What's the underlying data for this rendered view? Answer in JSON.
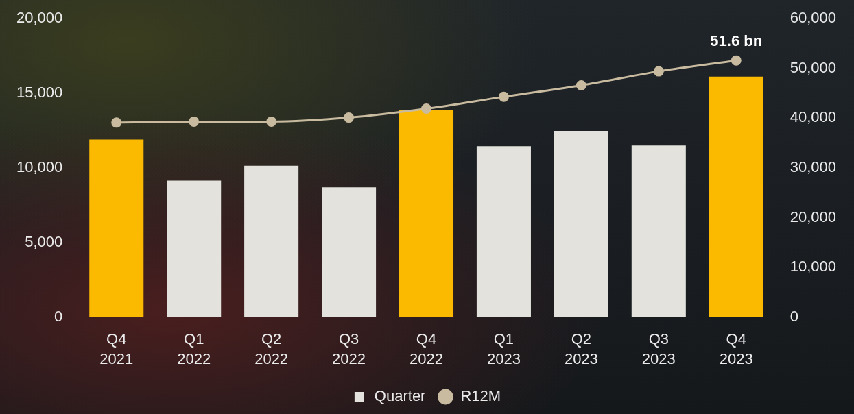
{
  "chart_data": {
    "type": "bar",
    "categories": [
      "Q4 2021",
      "Q1 2022",
      "Q2 2022",
      "Q3 2022",
      "Q4 2022",
      "Q1 2023",
      "Q2 2023",
      "Q3 2023",
      "Q4 2023"
    ],
    "series": [
      {
        "name": "Quarter",
        "type": "bar",
        "color": "#E3E2DC",
        "colors": [
          "#FBBA00",
          "#E3E2DC",
          "#E3E2DC",
          "#E3E2DC",
          "#FBBA00",
          "#E3E2DC",
          "#E3E2DC",
          "#E3E2DC",
          "#FBBA00"
        ],
        "values": [
          11900,
          9150,
          10150,
          8700,
          13900,
          11450,
          12480,
          11500,
          16120
        ]
      },
      {
        "name": "R12M",
        "type": "line",
        "color": "#C9BB9F",
        "marker": "circle",
        "axis": "y2",
        "values": [
          39100,
          39300,
          39300,
          40100,
          41900,
          44300,
          46600,
          49400,
          51600
        ]
      }
    ],
    "ylim": [
      0,
      20000
    ],
    "yticks": [
      0,
      {
        "value": 5000,
        "label": "5,000"
      },
      {
        "value": 10000,
        "label": "10,000"
      },
      {
        "value": 15000,
        "label": "15,000"
      },
      {
        "value": 20000,
        "label": "20,000"
      }
    ],
    "y2lim": [
      0,
      60000
    ],
    "y2ticks": [
      0,
      {
        "value": 10000,
        "label": "10,000"
      },
      {
        "value": 20000,
        "label": "20,000"
      },
      {
        "value": 30000,
        "label": "30,000"
      },
      {
        "value": 40000,
        "label": "40,000"
      },
      {
        "value": 50000,
        "label": "50,000"
      },
      {
        "value": 60000,
        "label": "60,000"
      }
    ],
    "annotations": [
      {
        "text": "51.6 bn",
        "x": "Q4 2023",
        "y": 51600,
        "axis": "y2"
      }
    ],
    "grid": false,
    "legend": "bottom"
  }
}
